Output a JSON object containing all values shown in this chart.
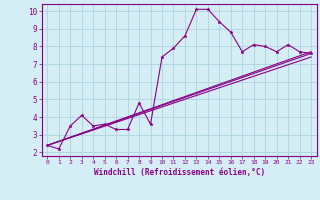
{
  "xlabel": "Windchill (Refroidissement éolien,°C)",
  "ylabel": "",
  "background_color": "#d5eef5",
  "grid_color": "#b0d8e0",
  "line_color": "#880088",
  "xlim": [
    -0.5,
    23.5
  ],
  "ylim": [
    1.8,
    10.4
  ],
  "x_ticks": [
    0,
    1,
    2,
    3,
    4,
    5,
    6,
    7,
    8,
    9,
    10,
    11,
    12,
    13,
    14,
    15,
    16,
    17,
    18,
    19,
    20,
    21,
    22,
    23
  ],
  "y_ticks": [
    2,
    3,
    4,
    5,
    6,
    7,
    8,
    9,
    10
  ],
  "series1_x": [
    0,
    1,
    2,
    3,
    4,
    5,
    6,
    7,
    8,
    9,
    10,
    11,
    12,
    13,
    14,
    15,
    16,
    17,
    18,
    19,
    20,
    21,
    22,
    23
  ],
  "series1_y": [
    2.4,
    2.2,
    3.5,
    4.1,
    3.5,
    3.6,
    3.3,
    3.3,
    4.8,
    3.6,
    7.4,
    7.9,
    8.6,
    10.1,
    10.1,
    9.4,
    8.8,
    7.7,
    8.1,
    8.0,
    7.7,
    8.1,
    7.7,
    7.6
  ],
  "series2_x": [
    0,
    23
  ],
  "series2_y": [
    2.4,
    7.6
  ],
  "series3_x": [
    0,
    23
  ],
  "series3_y": [
    2.4,
    7.4
  ],
  "series4_x": [
    0,
    23
  ],
  "series4_y": [
    2.4,
    7.7
  ]
}
